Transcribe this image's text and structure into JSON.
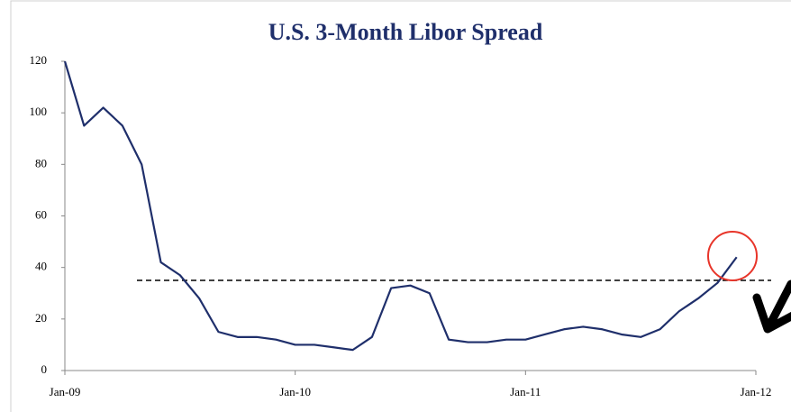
{
  "chart_data": {
    "type": "line",
    "title": "U.S. 3-Month Libor Spread",
    "x": [
      "2009-01",
      "2009-02",
      "2009-03",
      "2009-04",
      "2009-05",
      "2009-06",
      "2009-07",
      "2009-08",
      "2009-09",
      "2009-10",
      "2009-11",
      "2009-12",
      "2010-01",
      "2010-02",
      "2010-03",
      "2010-04",
      "2010-05",
      "2010-06",
      "2010-07",
      "2010-08",
      "2010-09",
      "2010-10",
      "2010-11",
      "2010-12",
      "2011-01",
      "2011-02",
      "2011-03",
      "2011-04",
      "2011-05",
      "2011-06",
      "2011-07",
      "2011-08",
      "2011-09",
      "2011-10",
      "2011-11",
      "2011-12"
    ],
    "series": [
      {
        "name": "3-Month Libor Spread",
        "color": "#1f2f6b",
        "values": [
          120,
          95,
          102,
          95,
          80,
          42,
          37,
          28,
          15,
          13,
          13,
          12,
          10,
          10,
          9,
          8,
          13,
          32,
          33,
          30,
          12,
          11,
          11,
          12,
          12,
          14,
          16,
          17,
          16,
          14,
          13,
          16,
          23,
          28,
          34,
          44
        ]
      }
    ],
    "xlim": [
      "2009-01",
      "2012-01"
    ],
    "xticks": [
      {
        "value": "2009-01",
        "label": "Jan-09"
      },
      {
        "value": "2010-01",
        "label": "Jan-10"
      },
      {
        "value": "2011-01",
        "label": "Jan-11"
      },
      {
        "value": "2012-01",
        "label": "Jan-12"
      }
    ],
    "ylim": [
      0,
      120
    ],
    "yticks": [
      0,
      20,
      40,
      60,
      80,
      100,
      120
    ],
    "hline": 35
  }
}
